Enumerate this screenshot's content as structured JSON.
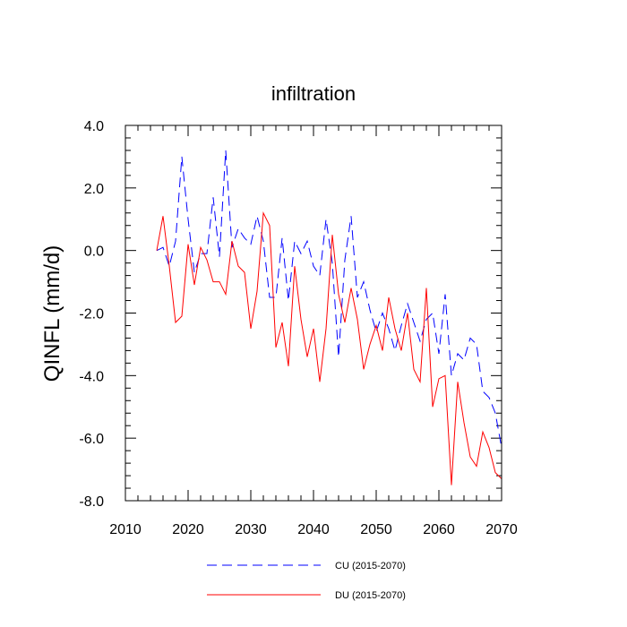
{
  "chart_data": {
    "type": "line",
    "title": "infiltration",
    "xlabel": "",
    "ylabel": "QINFL  (mm/d)",
    "xlim": [
      2010,
      2070
    ],
    "ylim": [
      -8.0,
      4.0
    ],
    "xticks": [
      2010,
      2020,
      2030,
      2040,
      2050,
      2060,
      2070
    ],
    "xtick_labels": [
      "2010",
      "2020",
      "2030",
      "2040",
      "2050",
      "2060",
      "2070"
    ],
    "yticks": [
      -8.0,
      -6.0,
      -4.0,
      -2.0,
      0.0,
      2.0,
      4.0
    ],
    "ytick_labels": [
      "-8.0",
      "-6.0",
      "-4.0",
      "-2.0",
      "0.0",
      "2.0",
      "4.0"
    ],
    "x": [
      2015,
      2016,
      2017,
      2018,
      2019,
      2020,
      2021,
      2022,
      2023,
      2024,
      2025,
      2026,
      2027,
      2028,
      2029,
      2030,
      2031,
      2032,
      2033,
      2034,
      2035,
      2036,
      2037,
      2038,
      2039,
      2040,
      2041,
      2042,
      2043,
      2044,
      2045,
      2046,
      2047,
      2048,
      2049,
      2050,
      2051,
      2052,
      2053,
      2054,
      2055,
      2056,
      2057,
      2058,
      2059,
      2060,
      2061,
      2062,
      2063,
      2064,
      2065,
      2066,
      2067,
      2068,
      2069,
      2070
    ],
    "series": [
      {
        "name": "CU (2015-2070)",
        "color": "#0000ff",
        "style": "dashed",
        "values": [
          0.0,
          0.1,
          -0.5,
          0.3,
          3.0,
          1.0,
          -0.7,
          -0.1,
          -0.1,
          1.7,
          -0.2,
          3.2,
          0.1,
          0.7,
          0.4,
          0.2,
          1.1,
          0.3,
          -1.5,
          -1.5,
          0.4,
          -1.6,
          0.3,
          -0.1,
          0.3,
          -0.5,
          -0.8,
          1.0,
          -0.4,
          -3.4,
          -0.3,
          1.1,
          -1.5,
          -1.0,
          -1.9,
          -2.6,
          -2.0,
          -2.5,
          -3.2,
          -2.4,
          -1.7,
          -2.3,
          -2.9,
          -2.2,
          -2.0,
          -3.3,
          -1.4,
          -4.0,
          -3.3,
          -3.5,
          -2.8,
          -3.0,
          -4.5,
          -4.7,
          -5.2,
          -6.3
        ]
      },
      {
        "name": "DU (2015-2070)",
        "color": "#ff0000",
        "style": "solid",
        "values": [
          0.0,
          1.1,
          -0.5,
          -2.3,
          -2.1,
          0.2,
          -1.1,
          0.1,
          -0.3,
          -1.0,
          -1.0,
          -1.4,
          0.3,
          -0.5,
          -0.7,
          -2.5,
          -1.3,
          1.2,
          0.8,
          -3.1,
          -2.3,
          -3.7,
          -0.5,
          -2.2,
          -3.4,
          -2.5,
          -4.2,
          -2.5,
          0.5,
          -1.4,
          -2.3,
          -1.2,
          -2.2,
          -3.8,
          -3.0,
          -2.4,
          -3.2,
          -1.5,
          -2.5,
          -3.2,
          -2.0,
          -3.8,
          -4.2,
          -1.2,
          -5.0,
          -4.1,
          -4.0,
          -7.5,
          -4.2,
          -5.5,
          -6.6,
          -6.9,
          -5.8,
          -6.3,
          -7.1,
          -7.3
        ]
      }
    ]
  }
}
